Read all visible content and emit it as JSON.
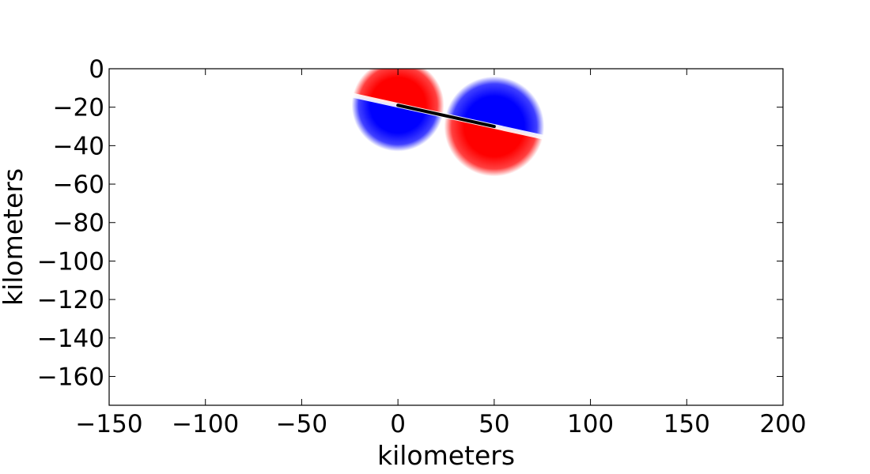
{
  "chart_data": {
    "type": "heatmap",
    "title": "",
    "xlabel": "kilometers",
    "ylabel": "kilometers",
    "xlim": [
      -150,
      200
    ],
    "ylim": [
      -175,
      0
    ],
    "x_ticks": [
      -150,
      -100,
      -50,
      0,
      50,
      100,
      150,
      200
    ],
    "y_ticks": [
      0,
      -20,
      -40,
      -60,
      -80,
      -100,
      -120,
      -140,
      -160
    ],
    "colormap": {
      "positive": "#ff0000",
      "zero": "#ffffff",
      "negative": "#0000ff"
    },
    "line_segment": {
      "x": [
        0,
        50
      ],
      "y": [
        -19,
        -30
      ],
      "color": "#000000"
    },
    "sources": [
      {
        "center_x": 0,
        "center_y": -19,
        "radius_km": 24,
        "upper_lobe": "positive",
        "lower_lobe": "negative"
      },
      {
        "center_x": 50,
        "center_y": -30,
        "radius_km": 26,
        "upper_lobe": "negative",
        "lower_lobe": "positive"
      }
    ]
  }
}
